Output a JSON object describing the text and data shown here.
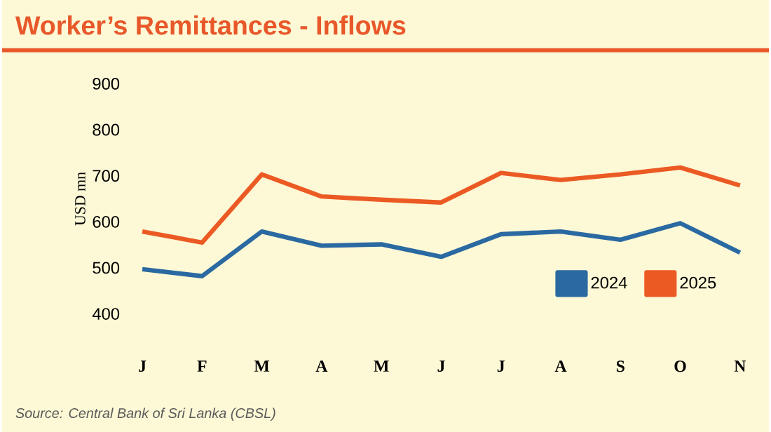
{
  "chart_data": {
    "type": "line",
    "title": "Worker’s Remittances - Inflows",
    "ylabel": "USD mn",
    "categories": [
      "J",
      "F",
      "M",
      "A",
      "M",
      "J",
      "J",
      "A",
      "S",
      "O",
      "N"
    ],
    "series": [
      {
        "name": "2024",
        "color": "#2a69a1",
        "values": [
          497,
          482,
          579,
          548,
          551,
          524,
          573,
          579,
          561,
          597,
          533
        ]
      },
      {
        "name": "2025",
        "color": "#ec5a24",
        "values": [
          579,
          555,
          703,
          655,
          648,
          642,
          706,
          691,
          703,
          718,
          679
        ]
      }
    ],
    "ylim": [
      400,
      900
    ],
    "yticks": [
      400,
      500,
      600,
      700,
      800,
      900
    ],
    "legend": "bottom right",
    "annotations": [
      "Source: Central Bank of Sri Lanka (CBSL)"
    ]
  }
}
